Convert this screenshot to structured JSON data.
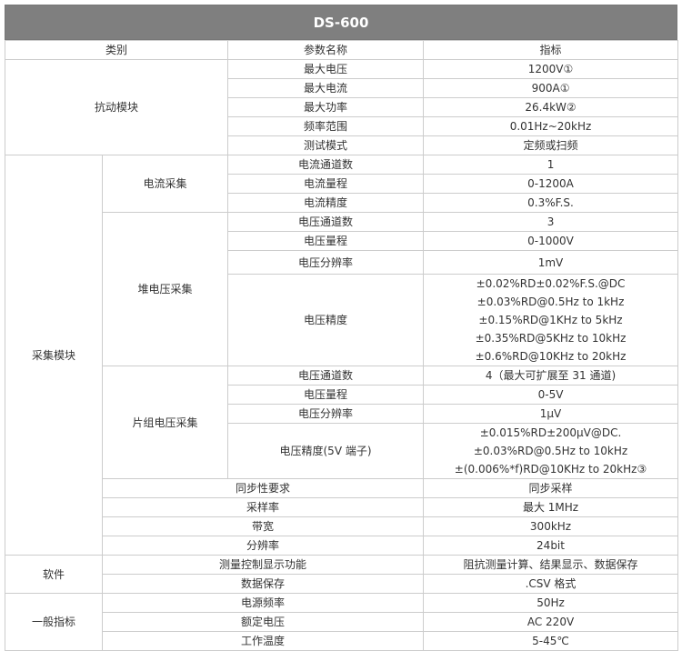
{
  "title": "DS-600",
  "header": {
    "category": "类别",
    "param": "参数名称",
    "value": "指标"
  },
  "groups": [
    {
      "category": "抗动模块",
      "items": [
        {
          "param": "最大电压",
          "value": [
            "1200V①"
          ]
        },
        {
          "param": "最大电流",
          "value": [
            "900A①"
          ]
        },
        {
          "param": "最大功率",
          "value": [
            "26.4kW②"
          ]
        },
        {
          "param": "频率范围",
          "value": [
            "0.01Hz~20kHz"
          ]
        },
        {
          "param": "测试模式",
          "value": [
            "定频或扫频"
          ]
        }
      ]
    },
    {
      "category": "采集模块",
      "subgroups": [
        {
          "name": "电流采集",
          "items": [
            {
              "param": "电流通道数",
              "value": [
                "1"
              ]
            },
            {
              "param": "电流量程",
              "value": [
                "0-1200A"
              ]
            },
            {
              "param": "电流精度",
              "value": [
                "0.3%F.S."
              ]
            }
          ]
        },
        {
          "name": "堆电压采集",
          "items": [
            {
              "param": "电压通道数",
              "value": [
                "3"
              ]
            },
            {
              "param": "电压量程",
              "value": [
                "0-1000V"
              ]
            },
            {
              "param": "电压分辨率",
              "value": [
                "1mV"
              ],
              "tall": true
            },
            {
              "param": "电压精度",
              "value": [
                "±0.02%RD±0.02%F.S.@DC",
                "±0.03%RD@0.5Hz to 1kHz",
                "±0.15%RD@1KHz to 5kHz",
                "±0.35%RD@5KHz to 10kHz",
                "±0.6%RD@10KHz to 20kHz"
              ]
            }
          ]
        },
        {
          "name": "片组电压采集",
          "items": [
            {
              "param": "电压通道数",
              "value": [
                "4（最大可扩展至 31 通道)"
              ]
            },
            {
              "param": "电压量程",
              "value": [
                "0-5V"
              ]
            },
            {
              "param": "电压分辨率",
              "value": [
                "1μV"
              ]
            },
            {
              "param": "电压精度(5V 端子)",
              "value": [
                "±0.015%RD±200μV@DC.",
                "±0.03%RD@0.5Hz to 10kHz",
                "±(0.006%*f)RD@10KHz to 20kHz③"
              ]
            }
          ]
        }
      ],
      "items": [
        {
          "param": "同步性要求",
          "value": [
            "同步采样"
          ]
        },
        {
          "param": "采样率",
          "value": [
            "最大 1MHz"
          ]
        },
        {
          "param": "带宽",
          "value": [
            "300kHz"
          ]
        },
        {
          "param": "分辨率",
          "value": [
            "24bit"
          ]
        }
      ]
    },
    {
      "category": "软件",
      "items": [
        {
          "param": "测量控制显示功能",
          "value": [
            "阻抗测量计算、结果显示、数据保存"
          ]
        },
        {
          "param": "数据保存",
          "value": [
            ".CSV 格式"
          ]
        }
      ]
    },
    {
      "category": "一般指标",
      "items": [
        {
          "param": "电源频率",
          "value": [
            "50Hz"
          ]
        },
        {
          "param": "额定电压",
          "value": [
            "AC 220V"
          ]
        },
        {
          "param": "工作温度",
          "value": [
            "5-45℃"
          ]
        }
      ]
    }
  ]
}
